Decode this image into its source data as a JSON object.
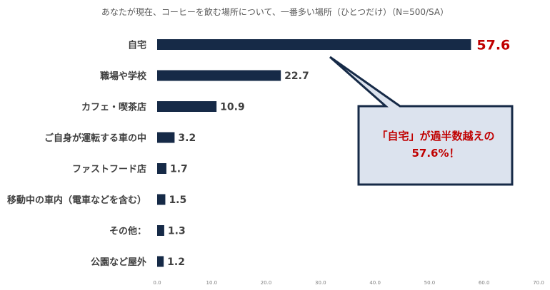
{
  "chart_data": {
    "type": "bar",
    "orientation": "horizontal",
    "title": "あなたが現在、コーヒーを飲む場所について、一番多い場所（ひとつだけ）（N=500/SA）",
    "categories": [
      "自宅",
      "職場や学校",
      "カフェ・喫茶店",
      "ご自身が運転する車の中",
      "ファストフード店",
      "移動中の車内（電車などを含む）",
      "その他：",
      "公園など屋外"
    ],
    "values": [
      57.6,
      22.7,
      10.9,
      3.2,
      1.7,
      1.5,
      1.3,
      1.2
    ],
    "value_labels": [
      "57.6",
      "22.7",
      "10.9",
      "3.2",
      "1.7",
      "1.5",
      "1.3",
      "1.2"
    ],
    "xlim": [
      0,
      70
    ],
    "x_ticks": [
      "0.0",
      "10.0",
      "20.0",
      "30.0",
      "40.0",
      "50.0",
      "60.0",
      "70.0"
    ],
    "grid": false,
    "highlight_index": 0,
    "colors": {
      "bar": "#162a47",
      "highlight_text": "#c00000",
      "callout_fill": "#dce3ee",
      "callout_border": "#162a47"
    },
    "annotation": {
      "line1": "「自宅」が過半数越えの",
      "line2": "57.6%！"
    }
  }
}
